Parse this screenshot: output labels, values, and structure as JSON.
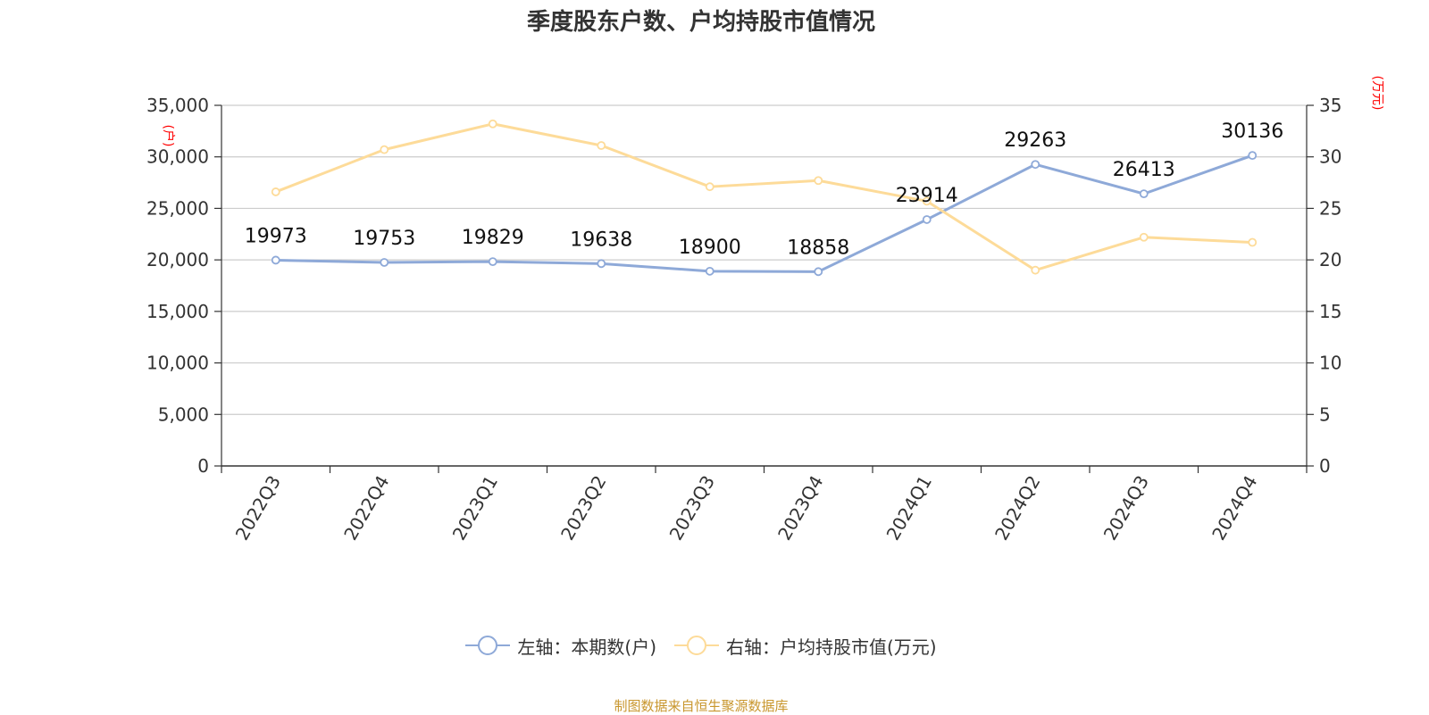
{
  "title": "季度股东户数、户均持股市值情况",
  "chart_data": {
    "type": "line",
    "categories": [
      "2022Q3",
      "2022Q4",
      "2023Q1",
      "2023Q2",
      "2023Q3",
      "2023Q4",
      "2024Q1",
      "2024Q2",
      "2024Q3",
      "2024Q4"
    ],
    "series": [
      {
        "name": "左轴：本期数(户)",
        "axis": "left",
        "color": "#8ea9d8",
        "values": [
          19973,
          19753,
          19829,
          19638,
          18900,
          18858,
          23914,
          29263,
          26413,
          30136
        ],
        "data_labels": [
          "19973",
          "19753",
          "19829",
          "19638",
          "18900",
          "18858",
          "23914",
          "29263",
          "26413",
          "30136"
        ]
      },
      {
        "name": "右轴：户均持股市值(万元)",
        "axis": "right",
        "color": "#fddb99",
        "values": [
          26.6,
          30.7,
          33.2,
          31.1,
          27.1,
          27.7,
          25.7,
          19.0,
          22.2,
          21.7
        ]
      }
    ],
    "left_axis": {
      "unit": "(户)",
      "ylim": [
        0,
        35000
      ],
      "tick_labels": [
        "0",
        "5,000",
        "10,000",
        "15,000",
        "20,000",
        "25,000",
        "30,000",
        "35,000"
      ]
    },
    "right_axis": {
      "unit": "(万元)",
      "ylim": [
        0,
        35
      ],
      "tick_labels": [
        "0",
        "5",
        "10",
        "15",
        "20",
        "25",
        "30",
        "35"
      ]
    },
    "grid": true,
    "legend_position": "bottom"
  },
  "legend": {
    "left_label": "左轴：本期数(户)",
    "right_label": "右轴：户均持股市值(万元)"
  },
  "source": "制图数据来自恒生聚源数据库"
}
